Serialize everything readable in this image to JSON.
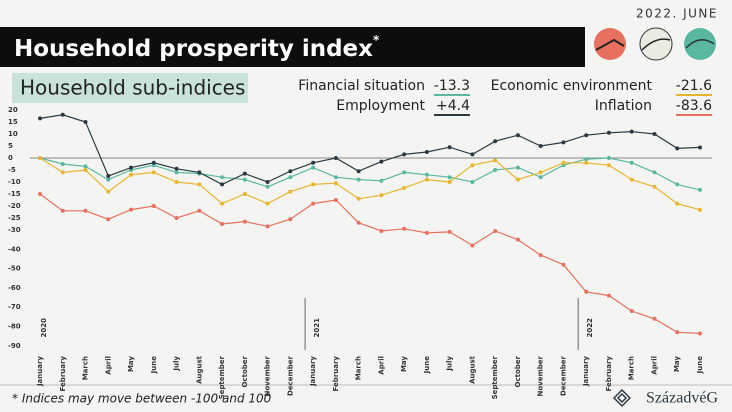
{
  "chart_data": {
    "type": "line",
    "date": "2022. JUNE",
    "title": "Household prosperity index",
    "title_mark": "*",
    "subtitle": "Household sub-indices",
    "footnote": "* Indices may move between -100 and 100",
    "brand": "SzázadvéG",
    "categories": [
      "January",
      "February",
      "March",
      "April",
      "May",
      "June",
      "July",
      "August",
      "September",
      "October",
      "November",
      "December",
      "January",
      "February",
      "March",
      "April",
      "May",
      "June",
      "July",
      "August",
      "September",
      "October",
      "November",
      "December",
      "January",
      "February",
      "March",
      "April",
      "May",
      "June"
    ],
    "years": [
      "2020",
      "2021",
      "2022"
    ],
    "series": [
      {
        "name": "Financial situation",
        "color": "#5bb8a0",
        "latest_label": "-13.3",
        "values": [
          0,
          -2.5,
          -3.5,
          -9,
          -5,
          -3,
          -6,
          -6.5,
          -8,
          -9,
          -12,
          -8,
          -4,
          -8,
          -9,
          -9.5,
          -6,
          -7,
          -8,
          -10,
          -5,
          -4,
          -8,
          -3,
          -0.5,
          0,
          -2,
          -6,
          -11,
          -13.3
        ]
      },
      {
        "name": "Employment",
        "color": "#2b3a42",
        "latest_label": "+4.4",
        "values": [
          16.5,
          18,
          15,
          -7.5,
          -4,
          -2,
          -4.5,
          -6,
          -11,
          -6.5,
          -10,
          -5.5,
          -2,
          0,
          -5.5,
          -1.5,
          1.5,
          2.5,
          4.5,
          1.5,
          7,
          9.5,
          5,
          6.5,
          9.5,
          10.5,
          11,
          10,
          4,
          4.4
        ]
      },
      {
        "name": "Economic environment",
        "color": "#e8b530",
        "latest_label": "-21.6",
        "values": [
          0,
          -6,
          -5,
          -14,
          -7,
          -6,
          -10,
          -11,
          -19,
          -15,
          -19,
          -14,
          -11,
          -10.5,
          -17,
          -15.5,
          -12.5,
          -9,
          -10,
          -3,
          -1,
          -9,
          -6,
          -2,
          -2,
          -3,
          -9,
          -12,
          -19,
          -21.6
        ]
      },
      {
        "name": "Inflation",
        "color": "#e8705f",
        "latest_label": "-83.6",
        "values": [
          -15,
          -22,
          -22,
          -25.5,
          -21.5,
          -20,
          -25,
          -22,
          -27.5,
          -26.5,
          -28.5,
          -25.5,
          -19,
          -17.5,
          -27,
          -30.5,
          -29.5,
          -31.5,
          -31,
          -38,
          -30.5,
          -35,
          -43,
          -48,
          -62,
          -64,
          -72,
          -76,
          -83,
          -83.6
        ]
      }
    ],
    "ylim": [
      -90,
      20
    ],
    "yticks": [
      20,
      15,
      10,
      5,
      0,
      -5,
      -10,
      -15,
      -20,
      -25,
      -30,
      -40,
      -50,
      -60,
      -70,
      -80,
      -90
    ],
    "zero_line": true
  }
}
